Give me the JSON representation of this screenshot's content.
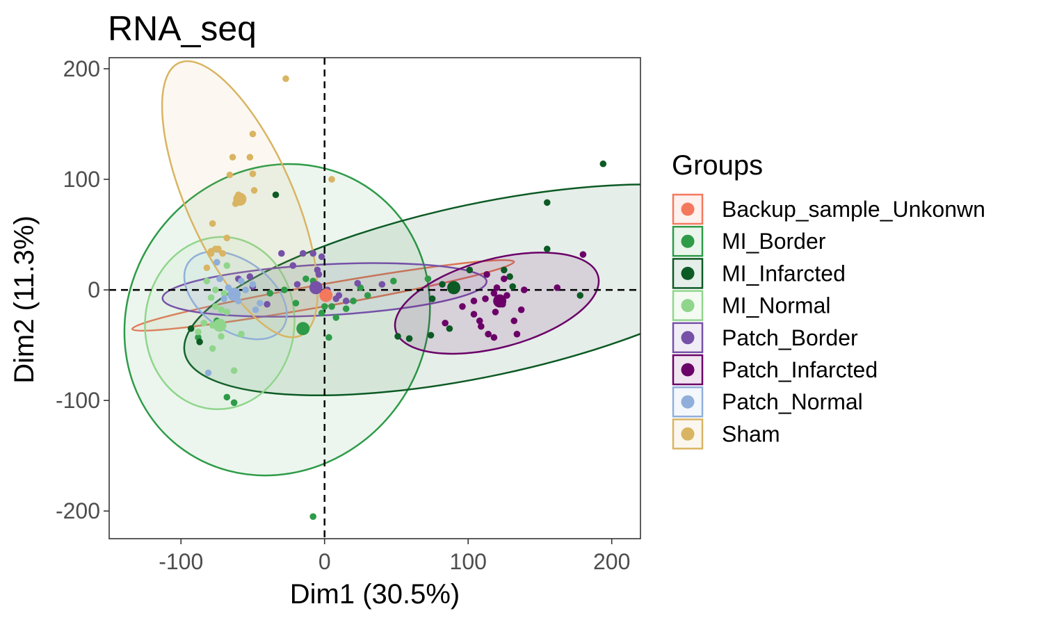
{
  "chart_data": {
    "type": "scatter",
    "title": "RNA_seq",
    "xlabel": "Dim1 (30.5%)",
    "ylabel": "Dim2 (11.3%)",
    "xlim": [
      -150,
      220
    ],
    "ylim": [
      -225,
      210
    ],
    "x_ticks": [
      -100,
      0,
      100,
      200
    ],
    "y_ticks": [
      -200,
      -100,
      0,
      100,
      200
    ],
    "x_tick_labels": [
      "-100",
      "0",
      "100",
      "200"
    ],
    "y_tick_labels": [
      "-200",
      "-100",
      "0",
      "100",
      "200"
    ],
    "reference_lines": {
      "x": 0,
      "y": 0,
      "style": "dashed"
    },
    "grid": false,
    "legend": {
      "title": "Groups",
      "placement": "right"
    },
    "series": [
      {
        "name": "Backup_sample_Unkonwn",
        "color": "#F4795C",
        "centroid": [
          1,
          -5
        ],
        "ellipse": {
          "cx": -1,
          "cy": -5,
          "rx": 135,
          "ry": 10,
          "angle": 10,
          "fill_opacity": 0.06
        },
        "points": [
          [
            1,
            -5
          ]
        ]
      },
      {
        "name": "MI_Border",
        "color": "#2E9B48",
        "centroid": [
          -15,
          -35
        ],
        "ellipse": {
          "cx": -33,
          "cy": -27,
          "rx": 103,
          "ry": 145,
          "angle": -38,
          "fill_opacity": 0.09
        },
        "points": [
          [
            -8,
            -205
          ],
          [
            -63,
            -102
          ],
          [
            -68,
            -97
          ],
          [
            -88,
            -43
          ],
          [
            -75,
            -28
          ],
          [
            -38,
            -3
          ],
          [
            -28,
            0
          ],
          [
            -20,
            -12
          ],
          [
            -13,
            10
          ],
          [
            -8,
            8
          ],
          [
            0,
            -15
          ],
          [
            -2,
            -21
          ],
          [
            3,
            -43
          ],
          [
            5,
            -15
          ],
          [
            8,
            -25
          ],
          [
            15,
            -17
          ],
          [
            20,
            -10
          ],
          [
            25,
            2
          ],
          [
            30,
            -5
          ],
          [
            48,
            8
          ],
          [
            72,
            10
          ]
        ]
      },
      {
        "name": "MI_Infarcted",
        "color": "#0C5A24",
        "centroid": [
          90,
          2
        ],
        "ellipse": {
          "cx": 110,
          "cy": 0,
          "rx": 212,
          "ry": 78,
          "angle": 12,
          "fill_opacity": 0.1
        },
        "points": [
          [
            -93,
            -35
          ],
          [
            -87,
            -47
          ],
          [
            -34,
            86
          ],
          [
            51,
            -42
          ],
          [
            59,
            -44
          ],
          [
            74,
            -41
          ],
          [
            75,
            -8
          ],
          [
            87,
            -35
          ],
          [
            101,
            18
          ],
          [
            125,
            18
          ],
          [
            129,
            12
          ],
          [
            131,
            3
          ],
          [
            155,
            37
          ],
          [
            155,
            79
          ],
          [
            194,
            114
          ],
          [
            178,
            -5
          ],
          [
            82,
            5
          ]
        ]
      },
      {
        "name": "MI_Normal",
        "color": "#90D58C",
        "centroid": [
          -73,
          -32
        ],
        "ellipse": {
          "cx": -73,
          "cy": -30,
          "rx": 52,
          "ry": 78,
          "angle": -5,
          "fill_opacity": 0.08
        },
        "points": [
          [
            -82,
            8
          ],
          [
            -79,
            -7
          ],
          [
            -76,
            -15
          ],
          [
            -72,
            -18
          ],
          [
            -70,
            -3
          ],
          [
            -68,
            -20
          ],
          [
            -78,
            -32
          ],
          [
            -72,
            -42
          ],
          [
            -58,
            -40
          ],
          [
            -63,
            -73
          ],
          [
            -78,
            -53
          ],
          [
            -84,
            -30
          ],
          [
            -88,
            -38
          ],
          [
            -68,
            22
          ],
          [
            -76,
            0
          ]
        ]
      },
      {
        "name": "Patch_Border",
        "color": "#7651A7",
        "centroid": [
          -6,
          2
        ],
        "ellipse": {
          "cx": 0,
          "cy": 0,
          "rx": 113,
          "ry": 23,
          "angle": 3,
          "fill_opacity": 0.08
        },
        "points": [
          [
            -60,
            10
          ],
          [
            -50,
            3
          ],
          [
            -30,
            33
          ],
          [
            -22,
            22
          ],
          [
            -15,
            33
          ],
          [
            -8,
            33
          ],
          [
            -5,
            18
          ],
          [
            -19,
            5
          ],
          [
            -4,
            14
          ],
          [
            2,
            0
          ],
          [
            8,
            -8
          ],
          [
            10,
            -5
          ],
          [
            15,
            -10
          ],
          [
            23,
            6
          ],
          [
            40,
            5
          ],
          [
            -40,
            -13
          ],
          [
            -52,
            12
          ],
          [
            -2,
            30
          ]
        ]
      },
      {
        "name": "Patch_Infarcted",
        "color": "#6A0068",
        "centroid": [
          122,
          -10
        ],
        "ellipse": {
          "cx": 120,
          "cy": -12,
          "rx": 73,
          "ry": 40,
          "angle": 15,
          "fill_opacity": 0.12
        },
        "points": [
          [
            84,
            -30
          ],
          [
            96,
            -15
          ],
          [
            104,
            -10
          ],
          [
            104,
            -22
          ],
          [
            108,
            -28
          ],
          [
            109,
            -33
          ],
          [
            112,
            -8
          ],
          [
            114,
            -40
          ],
          [
            118,
            -43
          ],
          [
            118,
            -3
          ],
          [
            119,
            -20
          ],
          [
            120,
            2
          ],
          [
            124,
            -13
          ],
          [
            127,
            -5
          ],
          [
            132,
            -28
          ],
          [
            134,
            -40
          ],
          [
            137,
            -18
          ],
          [
            139,
            0
          ],
          [
            125,
            10
          ],
          [
            162,
            2
          ],
          [
            180,
            32
          ],
          [
            113,
            14
          ]
        ]
      },
      {
        "name": "Patch_Normal",
        "color": "#8FAFDA",
        "centroid": [
          -63,
          -4
        ],
        "ellipse": {
          "cx": -62,
          "cy": -5,
          "rx": 40,
          "ry": 32,
          "angle": -35,
          "fill_opacity": 0.09
        },
        "points": [
          [
            -81,
            -75
          ],
          [
            -73,
            10
          ],
          [
            -70,
            -8
          ],
          [
            -67,
            2
          ],
          [
            -60,
            -10
          ],
          [
            -55,
            0
          ],
          [
            -50,
            5
          ],
          [
            -45,
            -12
          ],
          [
            -48,
            -18
          ],
          [
            -75,
            25
          ],
          [
            -58,
            8
          ]
        ]
      },
      {
        "name": "Sham",
        "color": "#D9B462",
        "centroid": [
          -59,
          82
        ],
        "ellipse": {
          "cx": -59,
          "cy": 82,
          "rx": 37,
          "ry": 135,
          "angle": 24,
          "fill_opacity": 0.09
        },
        "points": [
          [
            -27,
            191
          ],
          [
            -50,
            141
          ],
          [
            -52,
            120
          ],
          [
            -64,
            120
          ],
          [
            -50,
            105
          ],
          [
            -66,
            104
          ],
          [
            -49,
            90
          ],
          [
            -62,
            78
          ],
          [
            -78,
            60
          ],
          [
            -68,
            47
          ],
          [
            -76,
            37
          ],
          [
            -79,
            35
          ],
          [
            -74,
            37
          ],
          [
            -79,
            33
          ],
          [
            -71,
            33
          ],
          [
            -82,
            20
          ],
          [
            5,
            100
          ],
          [
            -60,
            86
          ]
        ]
      }
    ]
  }
}
